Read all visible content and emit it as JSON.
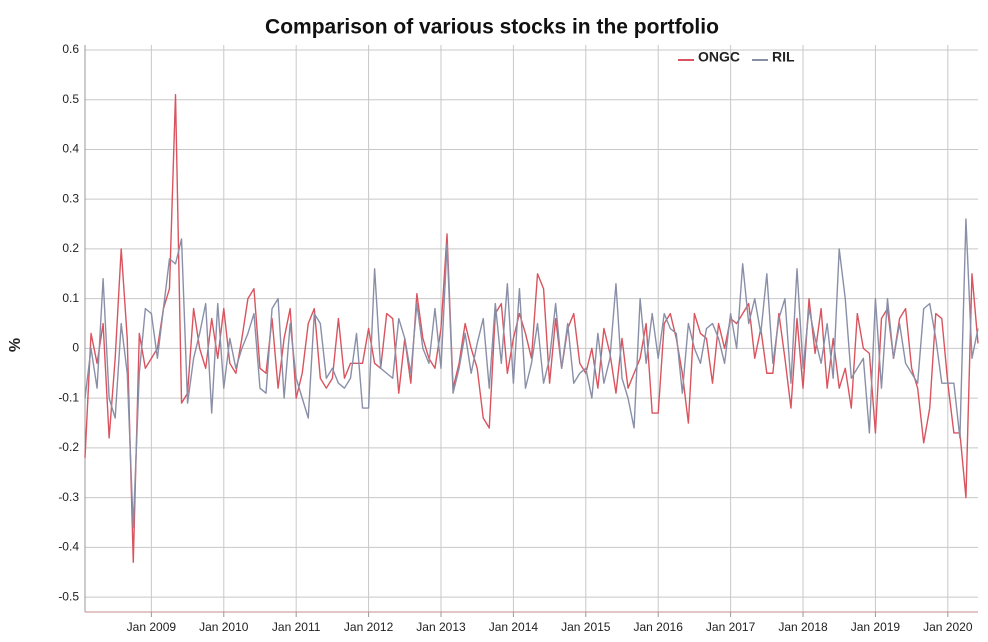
{
  "chart_data": {
    "type": "line",
    "title": "Comparison of various stocks in the portfolio",
    "ylabel": "%",
    "xlim": [
      "2008-02",
      "2020-06"
    ],
    "ylim": [
      -0.53,
      0.61
    ],
    "yticks": [
      0.6,
      0.5,
      0.4,
      0.3,
      0.2,
      0.1,
      0,
      -0.1,
      -0.2,
      -0.3,
      -0.4,
      -0.5
    ],
    "xticks": [
      {
        "value": "2009-01",
        "label": "Jan 2009"
      },
      {
        "value": "2010-01",
        "label": "Jan 2010"
      },
      {
        "value": "2011-01",
        "label": "Jan 2011"
      },
      {
        "value": "2012-01",
        "label": "Jan 2012"
      },
      {
        "value": "2013-01",
        "label": "Jan 2013"
      },
      {
        "value": "2014-01",
        "label": "Jan 2014"
      },
      {
        "value": "2015-01",
        "label": "Jan 2015"
      },
      {
        "value": "2016-01",
        "label": "Jan 2016"
      },
      {
        "value": "2017-01",
        "label": "Jan 2017"
      },
      {
        "value": "2018-01",
        "label": "Jan 2018"
      },
      {
        "value": "2019-01",
        "label": "Jan 2019"
      },
      {
        "value": "2020-01",
        "label": "Jan 2020"
      }
    ],
    "grid": true,
    "legend": "top-right",
    "start": "2008-02",
    "series": [
      {
        "name": "ONGC",
        "color": "#d9545e",
        "values": [
          -0.22,
          0.03,
          -0.03,
          0.05,
          -0.18,
          -0.02,
          0.2,
          0.02,
          -0.43,
          0.03,
          -0.04,
          -0.02,
          0.0,
          0.08,
          0.12,
          0.51,
          -0.11,
          -0.09,
          0.08,
          0.0,
          -0.04,
          0.06,
          -0.02,
          0.08,
          -0.03,
          -0.05,
          0.02,
          0.1,
          0.12,
          -0.04,
          -0.05,
          0.06,
          -0.08,
          0.02,
          0.08,
          -0.1,
          -0.05,
          0.05,
          0.08,
          -0.06,
          -0.08,
          -0.06,
          0.06,
          -0.06,
          -0.03,
          -0.03,
          -0.03,
          0.04,
          -0.03,
          -0.04,
          0.07,
          0.06,
          -0.09,
          0.02,
          -0.07,
          0.11,
          0.02,
          -0.02,
          -0.04,
          0.04,
          0.23,
          -0.08,
          -0.03,
          0.05,
          0.0,
          -0.04,
          -0.14,
          -0.16,
          0.07,
          0.09,
          -0.05,
          0.02,
          0.07,
          0.03,
          -0.02,
          0.15,
          0.12,
          -0.07,
          0.06,
          -0.04,
          0.04,
          0.07,
          -0.03,
          -0.05,
          0.0,
          -0.08,
          0.04,
          -0.01,
          -0.09,
          0.02,
          -0.08,
          -0.05,
          -0.02,
          0.05,
          -0.13,
          -0.13,
          0.05,
          0.07,
          0.02,
          -0.05,
          -0.15,
          0.07,
          0.03,
          0.02,
          -0.07,
          0.05,
          0.0,
          0.06,
          0.05,
          0.07,
          0.09,
          -0.02,
          0.04,
          -0.05,
          -0.05,
          0.07,
          -0.02,
          -0.12,
          0.06,
          -0.08,
          0.1,
          -0.01,
          0.08,
          -0.08,
          0.02,
          -0.08,
          -0.04,
          -0.12,
          0.07,
          0.0,
          -0.01,
          -0.17,
          0.06,
          0.08,
          -0.02,
          0.06,
          0.08,
          -0.04,
          -0.08,
          -0.19,
          -0.12,
          0.07,
          0.06,
          -0.07,
          -0.17,
          -0.17,
          -0.3,
          0.15,
          0.01
        ]
      },
      {
        "name": "RIL",
        "color": "#8a8fa8",
        "values": [
          -0.1,
          0.0,
          -0.08,
          0.14,
          -0.1,
          -0.14,
          0.05,
          -0.05,
          -0.36,
          -0.05,
          0.08,
          0.07,
          -0.02,
          0.08,
          0.18,
          0.17,
          0.22,
          -0.11,
          -0.02,
          0.03,
          0.09,
          -0.13,
          0.09,
          -0.08,
          0.02,
          -0.04,
          0.0,
          0.03,
          0.07,
          -0.08,
          -0.09,
          0.08,
          0.1,
          -0.1,
          0.05,
          -0.06,
          -0.1,
          -0.14,
          0.07,
          0.05,
          -0.06,
          -0.04,
          -0.07,
          -0.08,
          -0.06,
          0.03,
          -0.12,
          -0.12,
          0.16,
          -0.04,
          -0.05,
          -0.06,
          0.06,
          0.02,
          -0.05,
          0.09,
          0.0,
          -0.03,
          0.08,
          -0.04,
          0.21,
          -0.09,
          -0.04,
          0.03,
          -0.05,
          0.01,
          0.06,
          -0.08,
          0.09,
          -0.03,
          0.13,
          -0.07,
          0.12,
          -0.08,
          -0.03,
          0.05,
          -0.07,
          -0.02,
          0.09,
          -0.04,
          0.05,
          -0.07,
          -0.05,
          -0.04,
          -0.1,
          0.03,
          -0.07,
          -0.02,
          0.13,
          -0.06,
          -0.1,
          -0.16,
          0.1,
          -0.03,
          0.07,
          -0.02,
          0.07,
          0.04,
          0.03,
          -0.09,
          0.05,
          0.0,
          -0.03,
          0.04,
          0.05,
          0.02,
          -0.03,
          0.07,
          0.0,
          0.17,
          0.05,
          0.1,
          0.03,
          0.15,
          -0.03,
          0.06,
          0.1,
          -0.07,
          0.16,
          -0.04,
          0.08,
          0.02,
          -0.03,
          0.05,
          -0.06,
          0.2,
          0.1,
          -0.06,
          -0.04,
          -0.02,
          -0.17,
          0.1,
          -0.08,
          0.1,
          -0.02,
          0.05,
          -0.03,
          -0.05,
          -0.07,
          0.08,
          0.09,
          0.02,
          -0.07,
          -0.07,
          -0.07,
          -0.18,
          0.26,
          -0.02,
          0.04
        ]
      }
    ]
  }
}
